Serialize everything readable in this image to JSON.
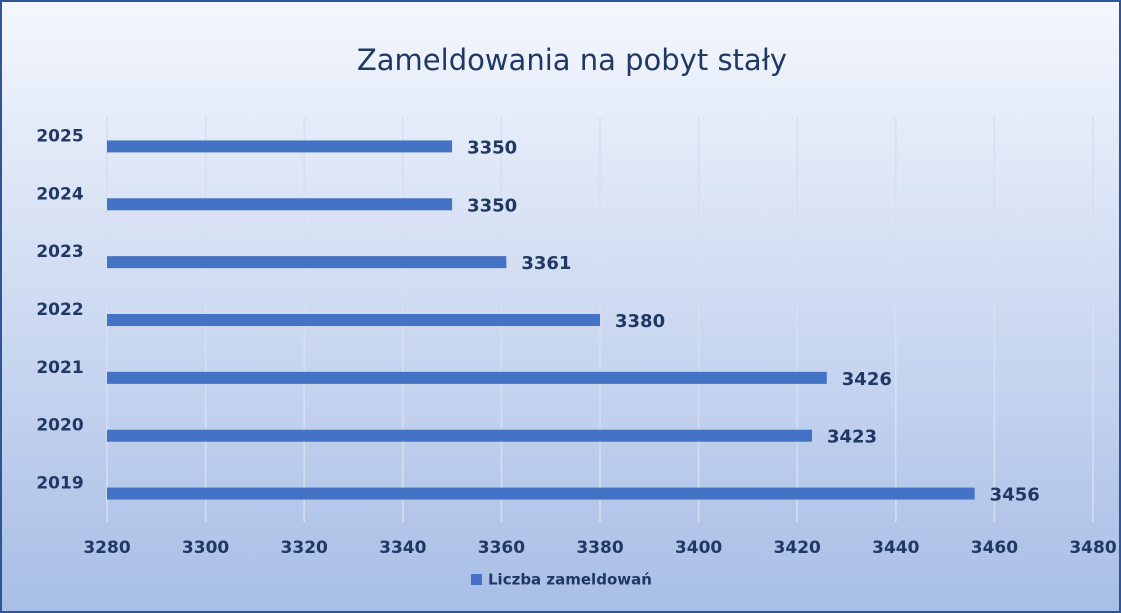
{
  "chart_data": {
    "type": "bar",
    "orientation": "horizontal",
    "title": "Zameldowania na pobyt stały",
    "categories": [
      "2019",
      "2020",
      "2021",
      "2022",
      "2023",
      "2024",
      "2025"
    ],
    "series": [
      {
        "name": "Liczba zameldowań",
        "color": "#4472c4",
        "values": [
          3456,
          3423,
          3426,
          3380,
          3361,
          3350,
          3350
        ]
      }
    ],
    "xlim": [
      3280,
      3480
    ],
    "xticks": [
      3280,
      3300,
      3320,
      3340,
      3360,
      3380,
      3400,
      3420,
      3440,
      3460,
      3480
    ],
    "grid": true,
    "legend": "bottom"
  }
}
